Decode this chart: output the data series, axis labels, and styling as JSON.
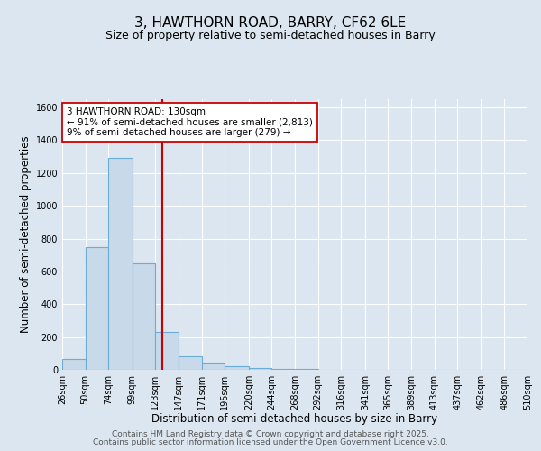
{
  "title_line1": "3, HAWTHORN ROAD, BARRY, CF62 6LE",
  "title_line2": "Size of property relative to semi-detached houses in Barry",
  "xlabel": "Distribution of semi-detached houses by size in Barry",
  "ylabel": "Number of semi-detached properties",
  "bar_edges": [
    26,
    50,
    74,
    99,
    123,
    147,
    171,
    195,
    220,
    244,
    268,
    292,
    316,
    341,
    365,
    389,
    413,
    437,
    462,
    486,
    510
  ],
  "bar_heights": [
    65,
    750,
    1290,
    650,
    230,
    85,
    45,
    20,
    10,
    5,
    3,
    0,
    0,
    0,
    0,
    0,
    0,
    0,
    0,
    0
  ],
  "bar_color": "#c8d9ea",
  "bar_edge_color": "#6aaed6",
  "vline_x": 130,
  "vline_color": "#cc0000",
  "annotation_line1": "3 HAWTHORN ROAD: 130sqm",
  "annotation_line2": "← 91% of semi-detached houses are smaller (2,813)",
  "annotation_line3": "9% of semi-detached houses are larger (279) →",
  "annotation_box_color": "#ffffff",
  "annotation_box_edge": "#cc0000",
  "ylim": [
    0,
    1650
  ],
  "yticks": [
    0,
    200,
    400,
    600,
    800,
    1000,
    1200,
    1400,
    1600
  ],
  "xtick_labels": [
    "26sqm",
    "50sqm",
    "74sqm",
    "99sqm",
    "123sqm",
    "147sqm",
    "171sqm",
    "195sqm",
    "220sqm",
    "244sqm",
    "268sqm",
    "292sqm",
    "316sqm",
    "341sqm",
    "365sqm",
    "389sqm",
    "413sqm",
    "437sqm",
    "462sqm",
    "486sqm",
    "510sqm"
  ],
  "background_color": "#dce6f0",
  "plot_bg_color": "#dce6f0",
  "grid_color": "#ffffff",
  "footer_line1": "Contains HM Land Registry data © Crown copyright and database right 2025.",
  "footer_line2": "Contains public sector information licensed under the Open Government Licence v3.0.",
  "title_fontsize": 11,
  "subtitle_fontsize": 9,
  "axis_label_fontsize": 8.5,
  "tick_fontsize": 7,
  "annotation_fontsize": 7.5,
  "footer_fontsize": 6.5
}
